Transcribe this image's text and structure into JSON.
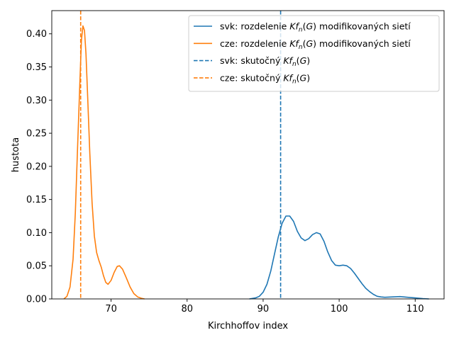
{
  "chart_data": {
    "type": "line",
    "xlabel": "Kirchhoffov index",
    "ylabel": "hustota",
    "xlim": [
      62.2,
      113.8
    ],
    "ylim": [
      0.0,
      0.435
    ],
    "xticks": [
      70,
      80,
      90,
      100,
      110
    ],
    "yticks": [
      0.0,
      0.05,
      0.1,
      0.15,
      0.2,
      0.25,
      0.3,
      0.35,
      0.4
    ],
    "ytick_labels": [
      "0.00",
      "0.05",
      "0.10",
      "0.15",
      "0.20",
      "0.25",
      "0.30",
      "0.35",
      "0.40"
    ],
    "grid": false,
    "legend_position": "upper right",
    "legend": [
      {
        "key": "svk_kde",
        "label_pre": "svk: rozdelenie ",
        "label_post": " modifikovaných sietí",
        "style": "solid",
        "color": "#1f77b4"
      },
      {
        "key": "cze_kde",
        "label_pre": "cze: rozdelenie ",
        "label_post": " modifikovaných sietí",
        "style": "solid",
        "color": "#ff7f0e"
      },
      {
        "key": "svk_true",
        "label_pre": "svk: skutočný ",
        "label_post": "",
        "style": "dashed",
        "color": "#1f77b4"
      },
      {
        "key": "cze_true",
        "label_pre": "cze: skutočný ",
        "label_post": "",
        "style": "dashed",
        "color": "#ff7f0e"
      }
    ],
    "series": [
      {
        "key": "svk_kde",
        "color": "#1f77b4",
        "x": [
          88.2,
          89.0,
          89.5,
          90.0,
          90.5,
          91.0,
          91.5,
          92.0,
          92.5,
          93.0,
          93.5,
          94.0,
          94.5,
          95.0,
          95.5,
          96.0,
          96.5,
          97.0,
          97.5,
          98.0,
          98.5,
          99.0,
          99.5,
          100.0,
          100.5,
          101.0,
          101.5,
          102.0,
          102.5,
          103.0,
          103.5,
          104.0,
          104.5,
          105.0,
          105.5,
          106.0,
          107.0,
          108.0,
          109.0,
          110.0,
          111.0,
          111.8
        ],
        "y": [
          0.0,
          0.0015,
          0.004,
          0.01,
          0.022,
          0.042,
          0.068,
          0.094,
          0.114,
          0.125,
          0.125,
          0.117,
          0.102,
          0.092,
          0.088,
          0.091,
          0.097,
          0.1,
          0.098,
          0.087,
          0.071,
          0.058,
          0.051,
          0.05,
          0.051,
          0.05,
          0.046,
          0.039,
          0.031,
          0.023,
          0.016,
          0.011,
          0.007,
          0.004,
          0.003,
          0.0025,
          0.003,
          0.0035,
          0.0025,
          0.0015,
          0.0005,
          0.0
        ]
      },
      {
        "key": "cze_kde",
        "color": "#ff7f0e",
        "x": [
          63.8,
          64.2,
          64.6,
          65.0,
          65.3,
          65.6,
          65.9,
          66.1,
          66.3,
          66.5,
          66.7,
          66.9,
          67.2,
          67.5,
          67.8,
          68.1,
          68.4,
          68.7,
          69.0,
          69.3,
          69.6,
          70.0,
          70.4,
          70.8,
          71.1,
          71.5,
          72.0,
          72.5,
          73.0,
          73.5,
          74.0,
          74.4
        ],
        "y": [
          0.0,
          0.004,
          0.018,
          0.06,
          0.13,
          0.23,
          0.33,
          0.39,
          0.412,
          0.405,
          0.37,
          0.31,
          0.22,
          0.145,
          0.095,
          0.07,
          0.058,
          0.048,
          0.035,
          0.025,
          0.022,
          0.028,
          0.04,
          0.049,
          0.05,
          0.045,
          0.032,
          0.018,
          0.008,
          0.003,
          0.001,
          0.0
        ]
      }
    ],
    "vlines": [
      {
        "key": "svk_true",
        "x": 92.3,
        "color": "#1f77b4"
      },
      {
        "key": "cze_true",
        "x": 66.0,
        "color": "#ff7f0e"
      }
    ]
  }
}
